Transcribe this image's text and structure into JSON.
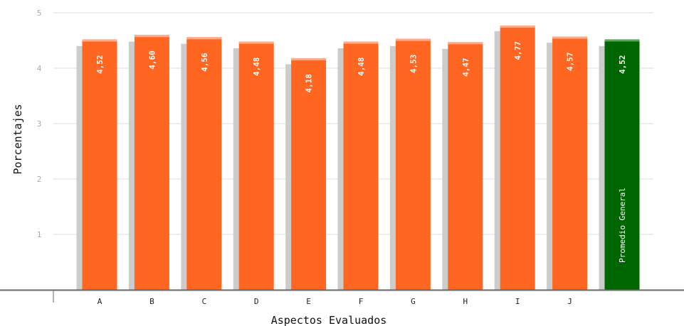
{
  "chart_data": {
    "type": "bar",
    "xlabel": "Aspectos Evaluados",
    "ylabel": "Porcentajes",
    "ylim": [
      0,
      5
    ],
    "yticks": [
      "1",
      "2",
      "3",
      "4",
      "5"
    ],
    "grid": true,
    "categories": [
      "A",
      "B",
      "C",
      "D",
      "E",
      "F",
      "G",
      "H",
      "I",
      "J"
    ],
    "values": [
      4.52,
      4.6,
      4.56,
      4.48,
      4.18,
      4.48,
      4.53,
      4.47,
      4.77,
      4.57
    ],
    "value_labels": [
      "4,52",
      "4,60",
      "4,56",
      "4,48",
      "4,18",
      "4,48",
      "4,53",
      "4,47",
      "4,77",
      "4,57"
    ],
    "shadow_values": [
      4.4,
      4.48,
      4.44,
      4.36,
      4.07,
      4.36,
      4.4,
      4.35,
      4.67,
      4.46
    ],
    "average": {
      "label": "Promedio General",
      "value": 4.52,
      "value_label": "4,52",
      "shadow_value": 4.4
    },
    "colors": {
      "bar": "#ff6622",
      "bar_top": "#ffaa88",
      "average_bar": "#006600",
      "average_top": "#55aa55",
      "shadow": "#cccccc",
      "grid": "#dddddd",
      "axis": "#666666"
    }
  }
}
